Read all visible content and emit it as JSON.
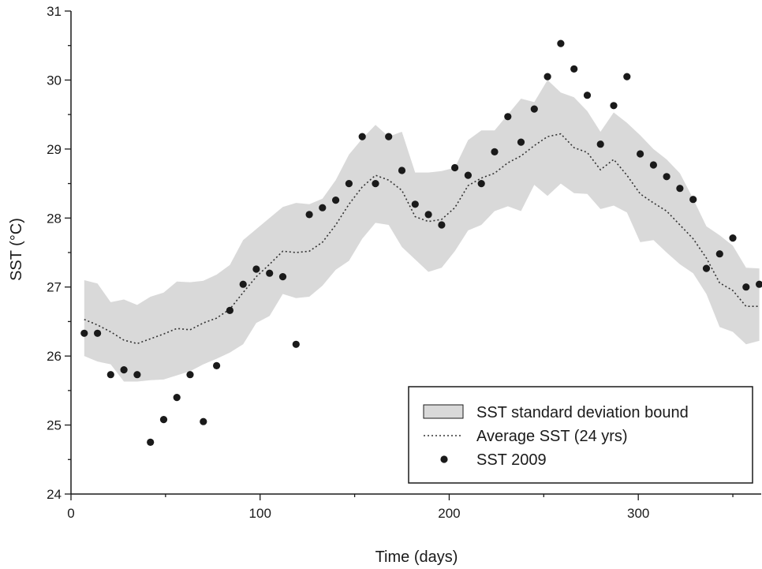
{
  "chart_data": {
    "type": "scatter",
    "xlabel": "Time (days)",
    "ylabel": "SST (°C)",
    "xlim": [
      0,
      365
    ],
    "ylim": [
      24,
      31
    ],
    "x_ticks": [
      0,
      100,
      200,
      300
    ],
    "y_ticks": [
      24,
      25,
      26,
      27,
      28,
      29,
      30,
      31
    ],
    "grid": false,
    "legend_position": "bottom-right",
    "colors": {
      "band_fill": "#d9d9d9",
      "mean_line": "#333333",
      "points": "#1a1a1a",
      "axes": "#1a1a1a"
    },
    "series": [
      {
        "name": "SST standard deviation bound",
        "kind": "band",
        "x": [
          7,
          14,
          21,
          28,
          35,
          42,
          49,
          56,
          63,
          70,
          77,
          84,
          91,
          98,
          105,
          112,
          119,
          126,
          133,
          140,
          147,
          154,
          161,
          168,
          175,
          182,
          189,
          196,
          203,
          210,
          217,
          224,
          231,
          238,
          245,
          252,
          259,
          266,
          273,
          280,
          287,
          294,
          301,
          308,
          315,
          322,
          329,
          336,
          343,
          350,
          357,
          364
        ],
        "upper": [
          27.1,
          27.05,
          26.78,
          26.82,
          26.74,
          26.86,
          26.92,
          27.08,
          27.07,
          27.09,
          27.18,
          27.32,
          27.68,
          27.84,
          28.0,
          28.16,
          28.22,
          28.2,
          28.28,
          28.55,
          28.92,
          29.15,
          29.35,
          29.18,
          29.25,
          28.66,
          28.66,
          28.68,
          28.73,
          29.13,
          29.27,
          29.27,
          29.5,
          29.73,
          29.68,
          30.0,
          29.82,
          29.75,
          29.55,
          29.25,
          29.53,
          29.38,
          29.2,
          29.0,
          28.85,
          28.65,
          28.28,
          27.88,
          27.75,
          27.6,
          27.28,
          27.27
        ],
        "lower": [
          26.0,
          25.92,
          25.88,
          25.63,
          25.63,
          25.65,
          25.66,
          25.72,
          25.78,
          25.88,
          25.96,
          26.05,
          26.17,
          26.48,
          26.58,
          26.9,
          26.84,
          26.86,
          27.02,
          27.25,
          27.38,
          27.7,
          27.93,
          27.9,
          27.58,
          27.4,
          27.22,
          27.28,
          27.52,
          27.82,
          27.9,
          28.1,
          28.17,
          28.1,
          28.48,
          28.32,
          28.5,
          28.36,
          28.35,
          28.13,
          28.18,
          28.08,
          27.65,
          27.68,
          27.5,
          27.33,
          27.2,
          26.9,
          26.42,
          26.35,
          26.17,
          26.22
        ]
      },
      {
        "name": "Average SST (24 yrs)",
        "kind": "line",
        "x": [
          7,
          14,
          21,
          28,
          35,
          42,
          49,
          56,
          63,
          70,
          77,
          84,
          91,
          98,
          105,
          112,
          119,
          126,
          133,
          140,
          147,
          154,
          161,
          168,
          175,
          182,
          189,
          196,
          203,
          210,
          217,
          224,
          231,
          238,
          245,
          252,
          259,
          266,
          273,
          280,
          287,
          294,
          301,
          308,
          315,
          322,
          329,
          336,
          343,
          350,
          357,
          364
        ],
        "y": [
          26.53,
          26.45,
          26.35,
          26.23,
          26.18,
          26.25,
          26.32,
          26.4,
          26.38,
          26.48,
          26.55,
          26.68,
          26.92,
          27.15,
          27.33,
          27.52,
          27.5,
          27.52,
          27.65,
          27.9,
          28.2,
          28.45,
          28.62,
          28.55,
          28.4,
          28.02,
          27.95,
          27.98,
          28.15,
          28.47,
          28.58,
          28.65,
          28.8,
          28.9,
          29.05,
          29.18,
          29.22,
          29.02,
          28.95,
          28.7,
          28.85,
          28.62,
          28.35,
          28.22,
          28.1,
          27.9,
          27.7,
          27.42,
          27.06,
          26.95,
          26.72,
          26.72
        ]
      },
      {
        "name": "SST 2009",
        "kind": "scatter",
        "x": [
          7,
          14,
          21,
          28,
          35,
          42,
          49,
          56,
          63,
          70,
          77,
          84,
          91,
          98,
          105,
          112,
          119,
          126,
          133,
          140,
          147,
          154,
          161,
          168,
          175,
          182,
          189,
          196,
          203,
          210,
          217,
          224,
          231,
          238,
          245,
          252,
          259,
          266,
          273,
          280,
          287,
          294,
          301,
          308,
          315,
          322,
          329,
          336,
          343,
          350,
          357,
          364
        ],
        "y": [
          26.33,
          26.33,
          25.73,
          25.8,
          25.73,
          24.75,
          25.08,
          25.4,
          25.73,
          25.05,
          25.86,
          26.66,
          27.04,
          27.26,
          27.2,
          27.15,
          26.17,
          28.05,
          28.15,
          28.26,
          28.5,
          29.18,
          28.5,
          29.18,
          28.69,
          28.2,
          28.05,
          27.9,
          28.73,
          28.62,
          28.5,
          28.96,
          29.47,
          29.1,
          29.58,
          30.05,
          30.53,
          30.16,
          29.78,
          29.07,
          29.63,
          30.05,
          28.93,
          28.77,
          28.6,
          28.43,
          28.27,
          27.27,
          27.48,
          27.71,
          27.0,
          27.04
        ]
      }
    ]
  }
}
